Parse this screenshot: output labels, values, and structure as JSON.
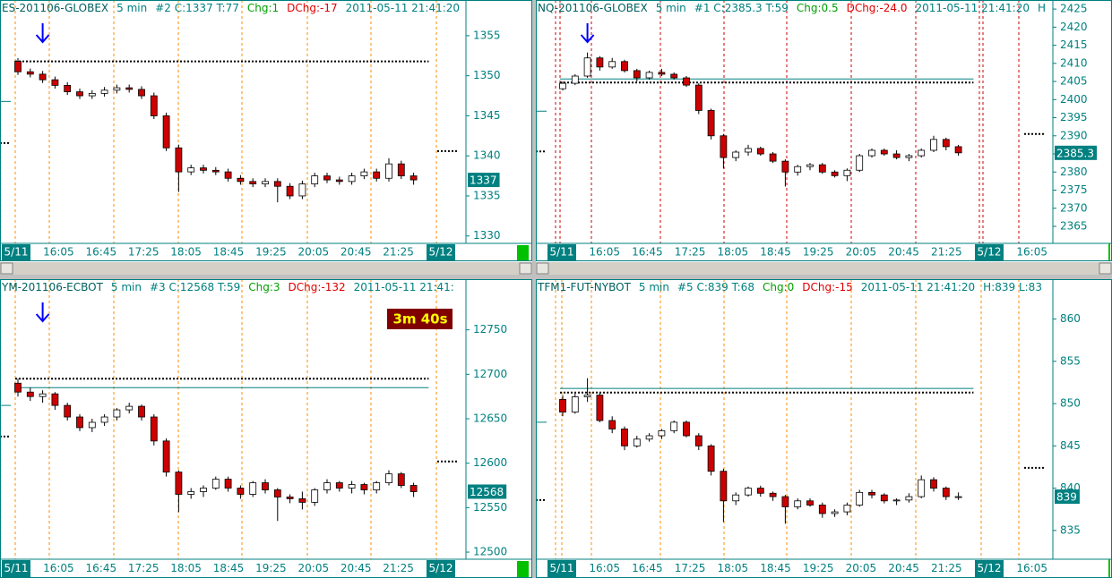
{
  "chart_data": [
    {
      "type": "candlestick",
      "header": [
        {
          "text": "ES-201106-GLOBEX",
          "color": "#006060"
        },
        {
          "text": "5 min",
          "color": "#008080"
        },
        {
          "text": "#2 C:1337 T:77",
          "color": "#008080"
        },
        {
          "text": "Chg:1",
          "color": "#00a000"
        },
        {
          "text": "DChg:-17",
          "color": "#e00000"
        },
        {
          "text": "2011-05-11 21:41:20",
          "color": "#008080"
        }
      ],
      "ylim": [
        1329.3,
        1358.9
      ],
      "yticks": [
        1330,
        1335,
        1340,
        1345,
        1350,
        1355
      ],
      "time_labels": [
        "5/11",
        "16:05",
        "16:45",
        "17:25",
        "18:05",
        "18:45",
        "19:25",
        "20:05",
        "20:45",
        "21:25",
        "5/12"
      ],
      "price_label": "1337",
      "levels": [
        {
          "value": 1351.8,
          "style": "dotted",
          "span": "main"
        },
        {
          "value": 1340.6,
          "style": "dotted",
          "span": "right"
        },
        {
          "value": 1346.8,
          "style": "solid",
          "span": "left"
        },
        {
          "value": 1341.6,
          "style": "dotted",
          "span": "left"
        }
      ],
      "candles": [
        [
          1351.8,
          1352.2,
          1350.1,
          1350.5
        ],
        [
          1350.5,
          1350.9,
          1349.8,
          1350.2
        ],
        [
          1350.2,
          1350.6,
          1349.1,
          1349.5
        ],
        [
          1349.5,
          1349.9,
          1348.4,
          1348.8
        ],
        [
          1348.8,
          1349.2,
          1347.6,
          1348
        ],
        [
          1348,
          1348.4,
          1347.1,
          1347.5
        ],
        [
          1347.5,
          1348.2,
          1347.1,
          1347.8
        ],
        [
          1347.8,
          1348.6,
          1347.4,
          1348.2
        ],
        [
          1348.2,
          1348.9,
          1347.8,
          1348.5
        ],
        [
          1348.5,
          1348.9,
          1347.9,
          1348.3
        ],
        [
          1348.3,
          1348.7,
          1347.1,
          1347.5
        ],
        [
          1347.5,
          1347.9,
          1344.6,
          1345
        ],
        [
          1345,
          1345.4,
          1340.6,
          1341
        ],
        [
          1341,
          1341.4,
          1335.5,
          1338
        ],
        [
          1338,
          1338.9,
          1337.6,
          1338.5
        ],
        [
          1338.5,
          1338.9,
          1337.8,
          1338.2
        ],
        [
          1338.2,
          1338.6,
          1337.6,
          1338
        ],
        [
          1338,
          1338.4,
          1336.8,
          1337.2
        ],
        [
          1337.2,
          1337.6,
          1336.4,
          1336.8
        ],
        [
          1336.8,
          1337.2,
          1336.1,
          1336.5
        ],
        [
          1336.5,
          1337.2,
          1336.1,
          1336.8
        ],
        [
          1336.8,
          1337.2,
          1334.2,
          1336.2
        ],
        [
          1336.2,
          1336.6,
          1334.6,
          1335
        ],
        [
          1335,
          1336.9,
          1334.6,
          1336.5
        ],
        [
          1336.5,
          1337.9,
          1336.1,
          1337.5
        ],
        [
          1337.5,
          1337.9,
          1336.6,
          1337
        ],
        [
          1337,
          1337.4,
          1336.4,
          1336.8
        ],
        [
          1336.8,
          1337.9,
          1336.4,
          1337.5
        ],
        [
          1337.5,
          1338.4,
          1337.1,
          1338
        ],
        [
          1338,
          1338.4,
          1336.8,
          1337.2
        ],
        [
          1337.2,
          1339.7,
          1336.8,
          1339
        ],
        [
          1339,
          1339.4,
          1337.1,
          1337.5
        ],
        [
          1337.5,
          1337.9,
          1336.4,
          1337
        ]
      ]
    },
    {
      "type": "candlestick",
      "header": [
        {
          "text": "NQ-201106-GLOBEX",
          "color": "#006060"
        },
        {
          "text": "5 min",
          "color": "#008080"
        },
        {
          "text": "#1 C:2385.3 T:59",
          "color": "#008080"
        },
        {
          "text": "Chg:0.5",
          "color": "#00a000"
        },
        {
          "text": "DChg:-24.0",
          "color": "#e00000"
        },
        {
          "text": "2011-05-11 21:41:20",
          "color": "#008080"
        },
        {
          "text": "H",
          "color": "#008080"
        }
      ],
      "ylim": [
        2360.8,
        2427
      ],
      "yticks": [
        2365,
        2370,
        2375,
        2380,
        2385,
        2390,
        2395,
        2400,
        2405,
        2410,
        2415,
        2420,
        2425
      ],
      "time_labels": [
        "5/11",
        "16:05",
        "16:45",
        "17:25",
        "18:05",
        "18:45",
        "19:25",
        "20:05",
        "20:45",
        "21:25",
        "5/12",
        "16:05"
      ],
      "price_label": "2385.3",
      "levels": [
        {
          "value": 2405.7,
          "style": "solid",
          "span": "main"
        },
        {
          "value": 2404.7,
          "style": "dotted",
          "span": "main"
        },
        {
          "value": 2390.5,
          "style": "dotted",
          "span": "right"
        },
        {
          "value": 2396.8,
          "style": "solid",
          "span": "left"
        },
        {
          "value": 2385.7,
          "style": "dotted",
          "span": "left"
        }
      ],
      "candles": [
        [
          2403,
          2405,
          2402.5,
          2404.5
        ],
        [
          2404.5,
          2407,
          2404,
          2406.5
        ],
        [
          2406.5,
          2413,
          2406,
          2411.5
        ],
        [
          2411.5,
          2412,
          2408,
          2409
        ],
        [
          2409,
          2411.5,
          2408.5,
          2410.5
        ],
        [
          2410.5,
          2411,
          2407.5,
          2408
        ],
        [
          2408,
          2408.5,
          2405,
          2406
        ],
        [
          2406,
          2408,
          2405.5,
          2407.5
        ],
        [
          2407.5,
          2408.5,
          2406.5,
          2407
        ],
        [
          2407,
          2407.5,
          2405.5,
          2406
        ],
        [
          2406,
          2406.5,
          2403.5,
          2404
        ],
        [
          2404,
          2404.5,
          2396,
          2397
        ],
        [
          2397,
          2397.5,
          2389,
          2390
        ],
        [
          2390,
          2390.5,
          2381,
          2384
        ],
        [
          2384,
          2386,
          2383,
          2385.5
        ],
        [
          2385.5,
          2387.5,
          2384.5,
          2386.5
        ],
        [
          2386.5,
          2387,
          2384.5,
          2385
        ],
        [
          2385,
          2385.5,
          2382.5,
          2383
        ],
        [
          2383,
          2383.5,
          2376,
          2380
        ],
        [
          2380,
          2382,
          2379,
          2381.5
        ],
        [
          2381.5,
          2382.5,
          2380.5,
          2382
        ],
        [
          2382,
          2382.5,
          2379.5,
          2380
        ],
        [
          2380,
          2380.5,
          2378.5,
          2379
        ],
        [
          2379,
          2381,
          2377.5,
          2380.5
        ],
        [
          2380.5,
          2385,
          2380,
          2384.5
        ],
        [
          2384.5,
          2386.5,
          2384,
          2386
        ],
        [
          2386,
          2386.5,
          2384.5,
          2385
        ],
        [
          2385,
          2386,
          2383.5,
          2384
        ],
        [
          2384,
          2385,
          2383,
          2384.5
        ],
        [
          2384.5,
          2386.5,
          2384,
          2386
        ],
        [
          2386,
          2390,
          2385.5,
          2389
        ],
        [
          2389,
          2389.5,
          2386,
          2387
        ],
        [
          2387,
          2387.5,
          2384.5,
          2385.3
        ]
      ]
    },
    {
      "type": "candlestick",
      "header": [
        {
          "text": "YM-201106-ECBOT",
          "color": "#006060"
        },
        {
          "text": "5 min",
          "color": "#008080"
        },
        {
          "text": "#3 C:12568 T:59",
          "color": "#008080"
        },
        {
          "text": "Chg:3",
          "color": "#00a000"
        },
        {
          "text": "DChg:-132",
          "color": "#e00000"
        },
        {
          "text": "2011-05-11 21:41:",
          "color": "#008080"
        }
      ],
      "ylim": [
        12492,
        12804
      ],
      "yticks": [
        12500,
        12550,
        12600,
        12650,
        12700,
        12750
      ],
      "time_labels": [
        "5/11",
        "16:05",
        "16:45",
        "17:25",
        "18:05",
        "18:45",
        "19:25",
        "20:05",
        "20:45",
        "21:25",
        "5/12"
      ],
      "price_label": "12568",
      "timer": "3m 40s",
      "levels": [
        {
          "value": 12695,
          "style": "dotted",
          "span": "main"
        },
        {
          "value": 12685,
          "style": "solid",
          "span": "main"
        },
        {
          "value": 12602,
          "style": "dotted",
          "span": "right"
        },
        {
          "value": 12665,
          "style": "solid",
          "span": "left"
        },
        {
          "value": 12630,
          "style": "dotted",
          "span": "left"
        }
      ],
      "candles": [
        [
          12690,
          12695,
          12675,
          12680
        ],
        [
          12680,
          12685,
          12670,
          12675
        ],
        [
          12675,
          12682,
          12668,
          12678
        ],
        [
          12678,
          12680,
          12660,
          12665
        ],
        [
          12665,
          12668,
          12648,
          12652
        ],
        [
          12652,
          12655,
          12636,
          12640
        ],
        [
          12640,
          12650,
          12635,
          12646
        ],
        [
          12646,
          12655,
          12642,
          12652
        ],
        [
          12652,
          12662,
          12648,
          12660
        ],
        [
          12660,
          12668,
          12656,
          12664
        ],
        [
          12664,
          12666,
          12648,
          12652
        ],
        [
          12652,
          12655,
          12620,
          12625
        ],
        [
          12625,
          12628,
          12585,
          12590
        ],
        [
          12590,
          12592,
          12545,
          12565
        ],
        [
          12565,
          12572,
          12560,
          12568
        ],
        [
          12568,
          12575,
          12562,
          12572
        ],
        [
          12572,
          12585,
          12570,
          12582
        ],
        [
          12582,
          12585,
          12568,
          12572
        ],
        [
          12572,
          12575,
          12560,
          12565
        ],
        [
          12565,
          12580,
          12562,
          12578
        ],
        [
          12578,
          12582,
          12566,
          12570
        ],
        [
          12570,
          12572,
          12535,
          12562
        ],
        [
          12562,
          12565,
          12555,
          12560
        ],
        [
          12560,
          12568,
          12548,
          12556
        ],
        [
          12556,
          12572,
          12552,
          12570
        ],
        [
          12570,
          12582,
          12566,
          12578
        ],
        [
          12578,
          12580,
          12568,
          12572
        ],
        [
          12572,
          12580,
          12566,
          12576
        ],
        [
          12576,
          12578,
          12565,
          12570
        ],
        [
          12570,
          12580,
          12566,
          12578
        ],
        [
          12578,
          12592,
          12575,
          12588
        ],
        [
          12588,
          12590,
          12572,
          12575
        ],
        [
          12575,
          12578,
          12562,
          12568
        ]
      ]
    },
    {
      "type": "candlestick",
      "header": [
        {
          "text": "TFM1-FUT-NYBOT",
          "color": "#006060"
        },
        {
          "text": "5 min",
          "color": "#008080"
        },
        {
          "text": "#5 C:839 T:68",
          "color": "#008080"
        },
        {
          "text": "Chg:0",
          "color": "#00a000"
        },
        {
          "text": "DChg:-15",
          "color": "#e00000"
        },
        {
          "text": "2011-05-11 21:41:20",
          "color": "#008080"
        },
        {
          "text": "H:839 L:83",
          "color": "#008080"
        }
      ],
      "ylim": [
        831.6,
        864.4
      ],
      "yticks": [
        835,
        840,
        845,
        850,
        855,
        860
      ],
      "time_labels": [
        "5/11",
        "16:05",
        "16:45",
        "17:25",
        "18:05",
        "18:45",
        "19:25",
        "20:05",
        "20:45",
        "21:25",
        "5/12",
        "16:05"
      ],
      "price_label": "839",
      "levels": [
        {
          "value": 851.8,
          "style": "solid",
          "span": "main"
        },
        {
          "value": 851.3,
          "style": "dotted",
          "span": "main"
        },
        {
          "value": 842.4,
          "style": "dotted",
          "span": "right"
        },
        {
          "value": 847.8,
          "style": "solid",
          "span": "left"
        },
        {
          "value": 838.6,
          "style": "dotted",
          "span": "left"
        }
      ],
      "candles": [
        [
          850.5,
          851,
          848.5,
          849
        ],
        [
          849,
          851.2,
          848.8,
          850.8
        ],
        [
          850.8,
          853,
          850.2,
          851
        ],
        [
          851,
          851.3,
          847.8,
          848
        ],
        [
          848,
          848.5,
          846.5,
          847
        ],
        [
          847,
          847.3,
          844.5,
          845
        ],
        [
          845,
          846.2,
          844.8,
          845.8
        ],
        [
          845.8,
          846.5,
          845.5,
          846.2
        ],
        [
          846.2,
          847,
          845.8,
          846.8
        ],
        [
          846.8,
          848,
          846.5,
          847.8
        ],
        [
          847.8,
          848,
          846,
          846.2
        ],
        [
          846.2,
          846.5,
          844.5,
          845
        ],
        [
          845,
          845.2,
          841.5,
          842
        ],
        [
          842,
          842.3,
          836,
          838.5
        ],
        [
          838.5,
          839.5,
          838,
          839.2
        ],
        [
          839.2,
          840.2,
          839,
          840
        ],
        [
          840,
          840.3,
          839,
          839.4
        ],
        [
          839.4,
          839.6,
          838.5,
          839
        ],
        [
          839,
          839.2,
          835.8,
          837.8
        ],
        [
          837.8,
          838.8,
          837.5,
          838.5
        ],
        [
          838.5,
          838.8,
          837.8,
          838
        ],
        [
          838,
          838.3,
          836.5,
          837
        ],
        [
          837,
          837.5,
          836.6,
          837.2
        ],
        [
          837.2,
          838.3,
          836.8,
          838
        ],
        [
          838,
          839.8,
          837.8,
          839.5
        ],
        [
          839.5,
          839.8,
          838.8,
          839.2
        ],
        [
          839.2,
          839.4,
          838.2,
          838.5
        ],
        [
          838.5,
          838.8,
          838,
          838.6
        ],
        [
          838.6,
          839.4,
          838.3,
          839
        ],
        [
          839,
          841.5,
          838.8,
          841
        ],
        [
          841,
          841.3,
          839.6,
          840
        ],
        [
          840,
          840.2,
          838.6,
          839
        ],
        [
          839,
          839.5,
          838.6,
          839
        ]
      ]
    }
  ]
}
